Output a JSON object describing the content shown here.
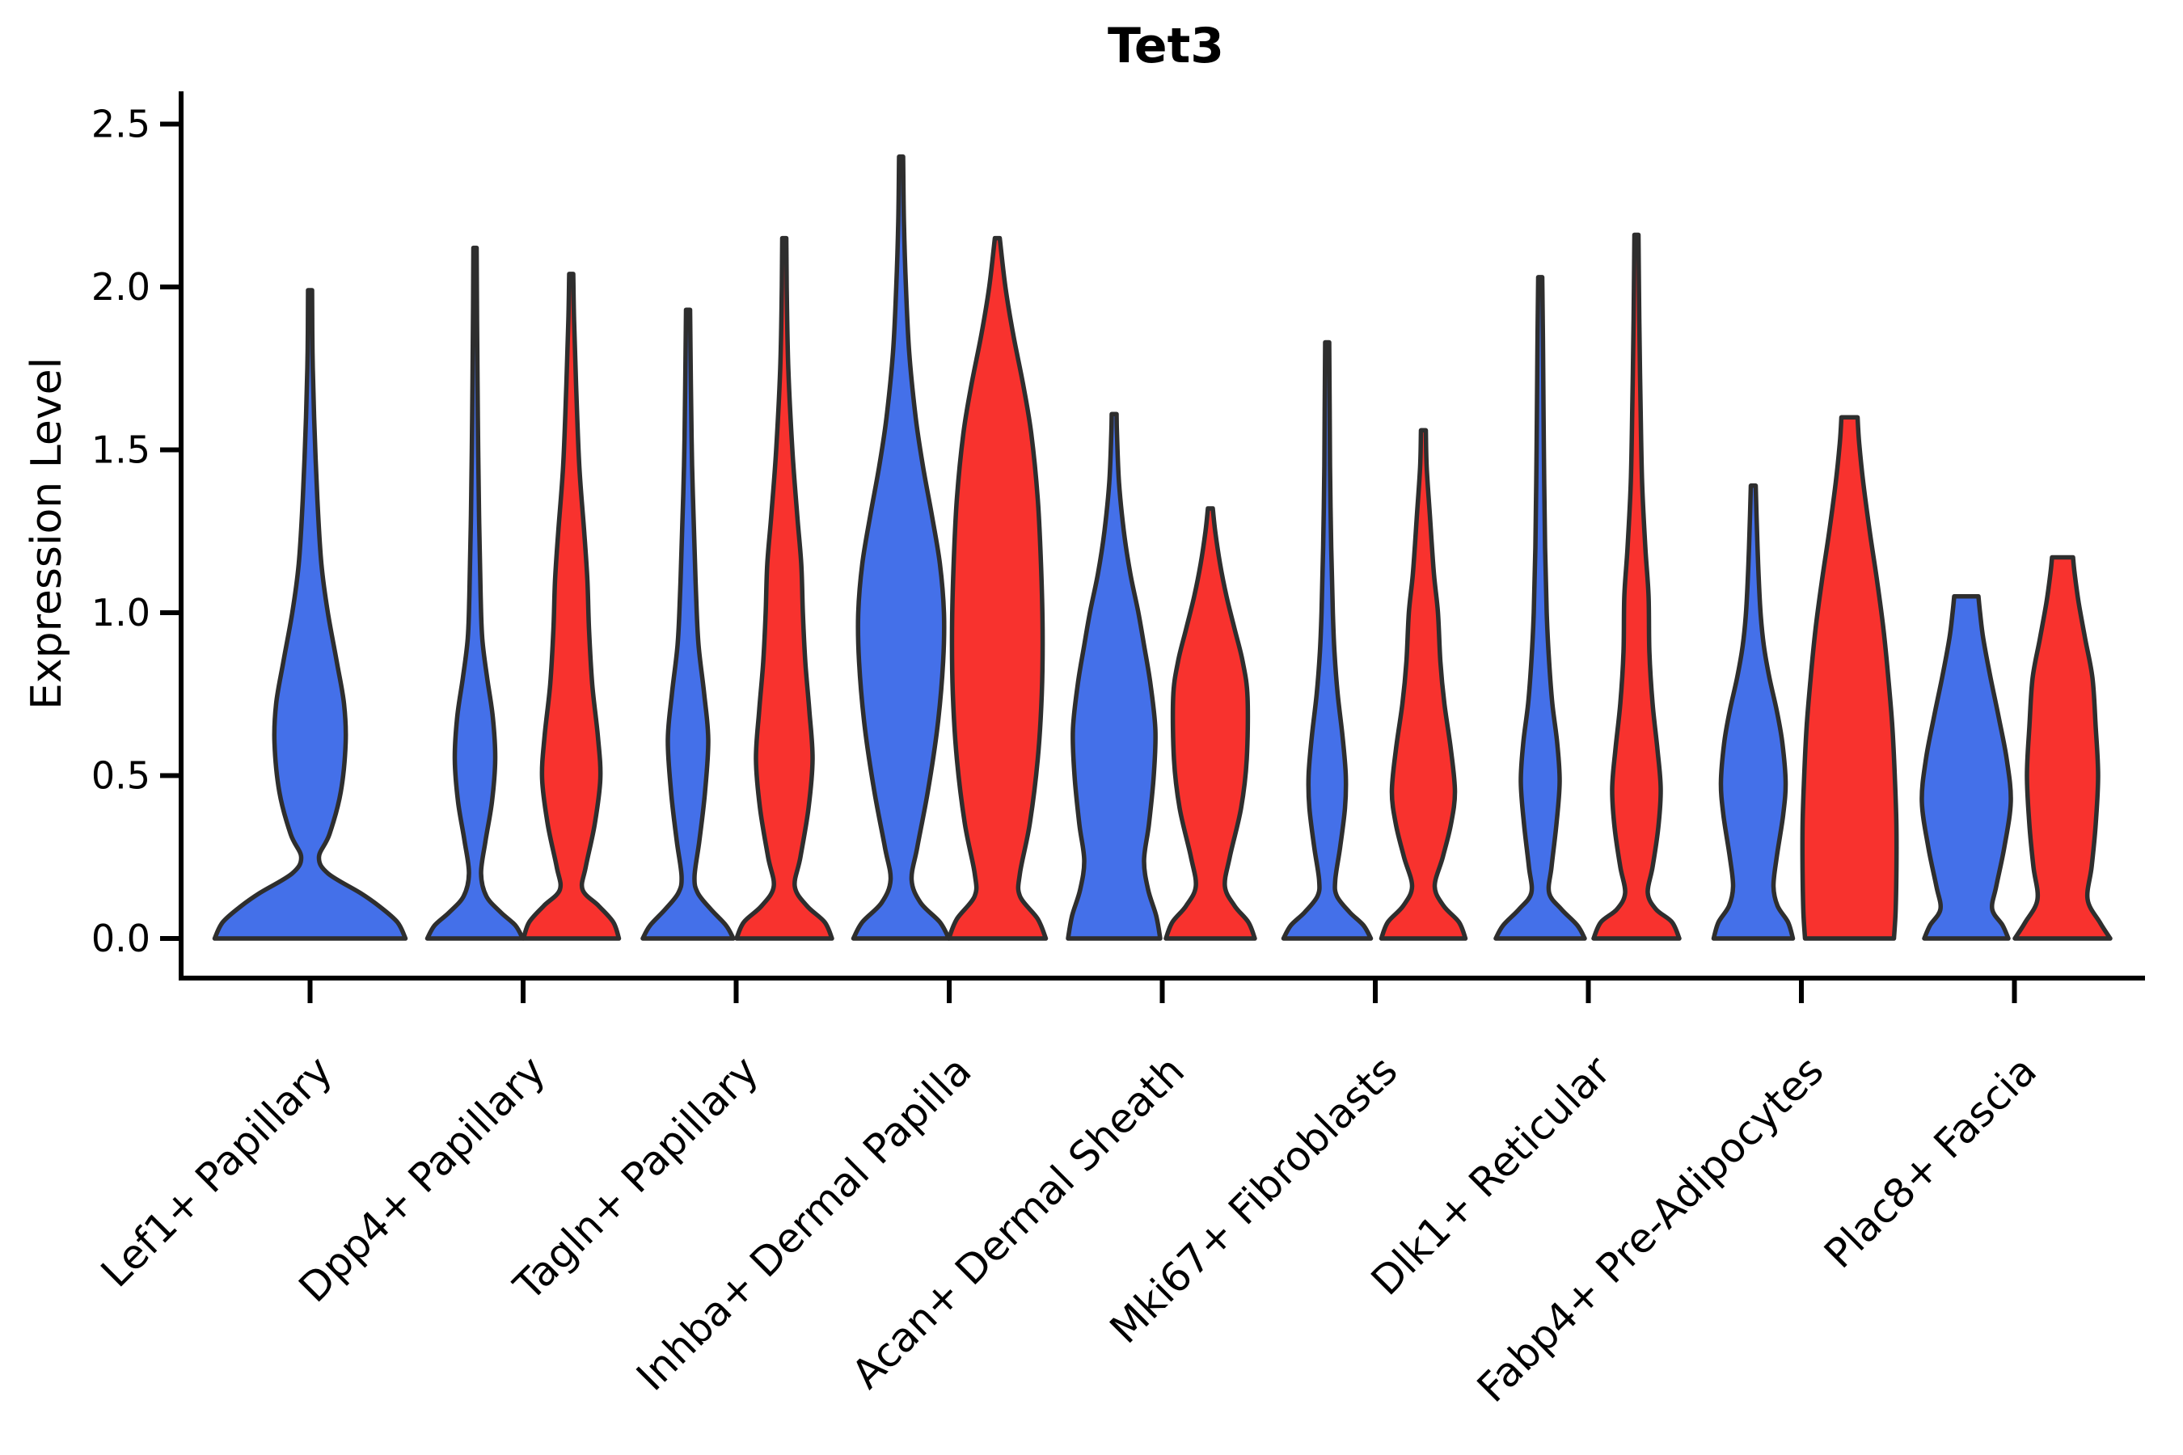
{
  "figure": {
    "title": "Tet3",
    "y_axis": {
      "label": "Expression Level",
      "tick_labels": [
        "0.0",
        "0.5",
        "1.0",
        "1.5",
        "2.0",
        "2.5"
      ],
      "tick_values": [
        0,
        0.5,
        1.0,
        1.5,
        2.0,
        2.5
      ]
    },
    "x_axis": {
      "categories": [
        "Lef1+ Papillary",
        "Dpp4+ Papillary",
        "Tagln+ Papillary",
        "Inhba+ Dermal Papilla",
        "Acan+ Dermal Sheath",
        "Mki67+ Fibroblasts",
        "Dlk1+ Reticular",
        "Fabp4+ Pre-Adipocytes",
        "Plac8+ Fascia"
      ]
    }
  },
  "style": {
    "background": "#FFFFFF",
    "axis_color": "#000000",
    "violin_outline": "#2E2E2E",
    "blue_fill": "#4470E9",
    "red_fill": "#F8322E"
  },
  "chart_data": {
    "type": "violin",
    "title": "Tet3",
    "ylabel": "Expression Level",
    "ylim": [
      0,
      2.5
    ],
    "grid": false,
    "legend_position": "none",
    "categories": [
      "Lef1+ Papillary",
      "Dpp4+ Papillary",
      "Tagln+ Papillary",
      "Inhba+ Dermal Papilla",
      "Acan+ Dermal Sheath",
      "Mki67+ Fibroblasts",
      "Dlk1+ Reticular",
      "Fabp4+ Pre-Adipocytes",
      "Plac8+ Fascia"
    ],
    "groups": {
      "blue": "#4470E9",
      "red": "#F8322E"
    },
    "profile_format": "[expression_level, half_width_px]",
    "violins": [
      {
        "category": "Lef1+ Papillary",
        "cat_index": 0,
        "side": "center",
        "group": "blue",
        "max_expression": 1.99,
        "profile": [
          [
            0,
            118
          ],
          [
            0.05,
            108
          ],
          [
            0.1,
            85
          ],
          [
            0.14,
            62
          ],
          [
            0.2,
            22
          ],
          [
            0.25,
            11
          ],
          [
            0.32,
            24
          ],
          [
            0.45,
            38
          ],
          [
            0.6,
            44
          ],
          [
            0.72,
            42
          ],
          [
            0.85,
            33
          ],
          [
            1.0,
            22
          ],
          [
            1.15,
            14
          ],
          [
            1.35,
            9
          ],
          [
            1.6,
            5
          ],
          [
            1.8,
            3
          ],
          [
            1.99,
            2.5
          ]
        ]
      },
      {
        "category": "Dpp4+ Papillary",
        "cat_index": 1,
        "side": "left",
        "group": "blue",
        "max_expression": 2.12,
        "profile": [
          [
            0,
            59
          ],
          [
            0.04,
            50
          ],
          [
            0.08,
            32
          ],
          [
            0.13,
            14
          ],
          [
            0.2,
            7.5
          ],
          [
            0.3,
            13
          ],
          [
            0.42,
            21
          ],
          [
            0.55,
            25
          ],
          [
            0.68,
            22
          ],
          [
            0.8,
            15
          ],
          [
            0.92,
            9
          ],
          [
            1.05,
            7
          ],
          [
            1.3,
            5
          ],
          [
            1.6,
            3.5
          ],
          [
            1.9,
            2.5
          ],
          [
            2.12,
            2
          ]
        ]
      },
      {
        "category": "Dpp4+ Papillary",
        "cat_index": 1,
        "side": "right",
        "group": "red",
        "max_expression": 2.04,
        "profile": [
          [
            0,
            59
          ],
          [
            0.05,
            52
          ],
          [
            0.1,
            34
          ],
          [
            0.15,
            14
          ],
          [
            0.22,
            18
          ],
          [
            0.35,
            29
          ],
          [
            0.49,
            36
          ],
          [
            0.62,
            33
          ],
          [
            0.78,
            26
          ],
          [
            0.95,
            22
          ],
          [
            1.1,
            20
          ],
          [
            1.25,
            16
          ],
          [
            1.45,
            10
          ],
          [
            1.7,
            6
          ],
          [
            1.9,
            3.5
          ],
          [
            2.04,
            2.5
          ]
        ]
      },
      {
        "category": "Tagln+ Papillary",
        "cat_index": 2,
        "side": "left",
        "group": "blue",
        "max_expression": 1.93,
        "profile": [
          [
            0,
            56
          ],
          [
            0.04,
            47
          ],
          [
            0.09,
            28
          ],
          [
            0.14,
            12
          ],
          [
            0.19,
            8
          ],
          [
            0.3,
            14
          ],
          [
            0.45,
            21
          ],
          [
            0.61,
            25
          ],
          [
            0.75,
            20
          ],
          [
            0.9,
            13
          ],
          [
            1.05,
            10
          ],
          [
            1.2,
            8
          ],
          [
            1.45,
            5
          ],
          [
            1.7,
            3.5
          ],
          [
            1.93,
            2.5
          ]
        ]
      },
      {
        "category": "Tagln+ Papillary",
        "cat_index": 2,
        "side": "right",
        "group": "red",
        "max_expression": 2.15,
        "profile": [
          [
            0,
            59
          ],
          [
            0.05,
            50
          ],
          [
            0.1,
            28
          ],
          [
            0.16,
            13
          ],
          [
            0.25,
            20
          ],
          [
            0.4,
            30
          ],
          [
            0.55,
            35
          ],
          [
            0.7,
            31
          ],
          [
            0.85,
            26
          ],
          [
            1.0,
            23
          ],
          [
            1.15,
            21
          ],
          [
            1.3,
            16
          ],
          [
            1.5,
            10
          ],
          [
            1.75,
            5
          ],
          [
            2.0,
            3
          ],
          [
            2.15,
            2.5
          ]
        ]
      },
      {
        "category": "Inhba+ Dermal Papilla",
        "cat_index": 3,
        "side": "left",
        "group": "blue",
        "max_expression": 2.4,
        "profile": [
          [
            0,
            59
          ],
          [
            0.05,
            48
          ],
          [
            0.11,
            24
          ],
          [
            0.18,
            13
          ],
          [
            0.28,
            20
          ],
          [
            0.45,
            33
          ],
          [
            0.65,
            45
          ],
          [
            0.85,
            52
          ],
          [
            1.0,
            53
          ],
          [
            1.15,
            48
          ],
          [
            1.3,
            38
          ],
          [
            1.45,
            27
          ],
          [
            1.6,
            18
          ],
          [
            1.8,
            10
          ],
          [
            2.0,
            6
          ],
          [
            2.2,
            3.5
          ],
          [
            2.4,
            2.5
          ]
        ]
      },
      {
        "category": "Inhba+ Dermal Papilla",
        "cat_index": 3,
        "side": "right",
        "group": "red",
        "max_expression": 2.15,
        "profile": [
          [
            0,
            60
          ],
          [
            0.06,
            50
          ],
          [
            0.13,
            28
          ],
          [
            0.2,
            28
          ],
          [
            0.35,
            40
          ],
          [
            0.55,
            50
          ],
          [
            0.75,
            55
          ],
          [
            0.95,
            56
          ],
          [
            1.15,
            54
          ],
          [
            1.35,
            50
          ],
          [
            1.55,
            42
          ],
          [
            1.7,
            32
          ],
          [
            1.85,
            20
          ],
          [
            2.0,
            10
          ],
          [
            2.15,
            3
          ]
        ]
      },
      {
        "category": "Acan+ Dermal Sheath",
        "cat_index": 4,
        "side": "left",
        "group": "blue",
        "max_expression": 1.61,
        "profile": [
          [
            0,
            57
          ],
          [
            0.07,
            52
          ],
          [
            0.15,
            42
          ],
          [
            0.24,
            37
          ],
          [
            0.35,
            43
          ],
          [
            0.5,
            49
          ],
          [
            0.64,
            51
          ],
          [
            0.78,
            45
          ],
          [
            0.9,
            37
          ],
          [
            1.0,
            30
          ],
          [
            1.12,
            20
          ],
          [
            1.25,
            12
          ],
          [
            1.4,
            6
          ],
          [
            1.55,
            3.5
          ],
          [
            1.61,
            3
          ]
        ]
      },
      {
        "category": "Acan+ Dermal Sheath",
        "cat_index": 4,
        "side": "right",
        "group": "red",
        "max_expression": 1.32,
        "profile": [
          [
            0,
            55
          ],
          [
            0.05,
            47
          ],
          [
            0.1,
            30
          ],
          [
            0.16,
            18
          ],
          [
            0.25,
            24
          ],
          [
            0.4,
            38
          ],
          [
            0.55,
            45
          ],
          [
            0.74,
            46
          ],
          [
            0.85,
            40
          ],
          [
            0.95,
            30
          ],
          [
            1.05,
            20
          ],
          [
            1.15,
            12
          ],
          [
            1.25,
            6
          ],
          [
            1.32,
            3
          ]
        ]
      },
      {
        "category": "Mki67+ Fibroblasts",
        "cat_index": 5,
        "side": "left",
        "group": "blue",
        "max_expression": 1.83,
        "profile": [
          [
            0,
            54
          ],
          [
            0.04,
            45
          ],
          [
            0.08,
            28
          ],
          [
            0.13,
            12
          ],
          [
            0.18,
            10
          ],
          [
            0.28,
            16
          ],
          [
            0.4,
            22
          ],
          [
            0.5,
            23
          ],
          [
            0.62,
            19
          ],
          [
            0.75,
            13
          ],
          [
            0.88,
            9
          ],
          [
            1.0,
            7
          ],
          [
            1.2,
            5
          ],
          [
            1.45,
            3.5
          ],
          [
            1.65,
            3
          ],
          [
            1.83,
            2.5
          ]
        ]
      },
      {
        "category": "Mki67+ Fibroblasts",
        "cat_index": 5,
        "side": "right",
        "group": "red",
        "max_expression": 1.56,
        "profile": [
          [
            0,
            52
          ],
          [
            0.05,
            44
          ],
          [
            0.1,
            25
          ],
          [
            0.16,
            14
          ],
          [
            0.25,
            24
          ],
          [
            0.35,
            34
          ],
          [
            0.45,
            39
          ],
          [
            0.58,
            34
          ],
          [
            0.72,
            26
          ],
          [
            0.85,
            21
          ],
          [
            1.0,
            18
          ],
          [
            1.12,
            13
          ],
          [
            1.3,
            8
          ],
          [
            1.45,
            4
          ],
          [
            1.56,
            3
          ]
        ]
      },
      {
        "category": "Dlk1+ Reticular",
        "cat_index": 6,
        "side": "left",
        "group": "blue",
        "max_expression": 2.03,
        "profile": [
          [
            0,
            55
          ],
          [
            0.04,
            46
          ],
          [
            0.09,
            26
          ],
          [
            0.14,
            11
          ],
          [
            0.22,
            14
          ],
          [
            0.35,
            20
          ],
          [
            0.48,
            24
          ],
          [
            0.6,
            21
          ],
          [
            0.72,
            15
          ],
          [
            0.85,
            11
          ],
          [
            1.0,
            8
          ],
          [
            1.2,
            6
          ],
          [
            1.5,
            4.5
          ],
          [
            1.8,
            3.5
          ],
          [
            2.03,
            2.5
          ]
        ]
      },
      {
        "category": "Dlk1+ Reticular",
        "cat_index": 6,
        "side": "right",
        "group": "red",
        "max_expression": 2.16,
        "profile": [
          [
            0,
            53
          ],
          [
            0.05,
            44
          ],
          [
            0.09,
            24
          ],
          [
            0.14,
            14
          ],
          [
            0.22,
            20
          ],
          [
            0.34,
            27
          ],
          [
            0.46,
            30
          ],
          [
            0.58,
            26
          ],
          [
            0.72,
            20
          ],
          [
            0.88,
            16
          ],
          [
            1.05,
            15
          ],
          [
            1.2,
            11
          ],
          [
            1.4,
            7
          ],
          [
            1.65,
            5
          ],
          [
            1.9,
            3.5
          ],
          [
            2.16,
            2.5
          ]
        ]
      },
      {
        "category": "Fabp4+ Pre-Adipocytes",
        "cat_index": 7,
        "side": "left",
        "group": "blue",
        "max_expression": 1.39,
        "profile": [
          [
            0,
            49
          ],
          [
            0.05,
            43
          ],
          [
            0.1,
            30
          ],
          [
            0.16,
            25
          ],
          [
            0.25,
            29
          ],
          [
            0.38,
            37
          ],
          [
            0.48,
            40
          ],
          [
            0.6,
            36
          ],
          [
            0.7,
            29
          ],
          [
            0.8,
            20
          ],
          [
            0.9,
            13
          ],
          [
            1.0,
            9
          ],
          [
            1.15,
            6
          ],
          [
            1.3,
            4
          ],
          [
            1.39,
            3
          ]
        ]
      },
      {
        "category": "Fabp4+ Pre-Adipocytes",
        "cat_index": 7,
        "side": "right",
        "group": "red",
        "max_expression": 1.6,
        "profile": [
          [
            0,
            55
          ],
          [
            0.08,
            57
          ],
          [
            0.2,
            58
          ],
          [
            0.35,
            58
          ],
          [
            0.5,
            56
          ],
          [
            0.65,
            53
          ],
          [
            0.8,
            48
          ],
          [
            0.95,
            42
          ],
          [
            1.1,
            34
          ],
          [
            1.25,
            25
          ],
          [
            1.4,
            17
          ],
          [
            1.52,
            12
          ],
          [
            1.6,
            10
          ]
        ]
      },
      {
        "category": "Plac8+ Fascia",
        "cat_index": 8,
        "side": "left",
        "group": "blue",
        "max_expression": 1.05,
        "profile": [
          [
            0,
            52
          ],
          [
            0.04,
            45
          ],
          [
            0.09,
            32
          ],
          [
            0.16,
            37
          ],
          [
            0.28,
            47
          ],
          [
            0.42,
            55
          ],
          [
            0.55,
            50
          ],
          [
            0.68,
            40
          ],
          [
            0.8,
            30
          ],
          [
            0.92,
            21
          ],
          [
            1.0,
            17
          ],
          [
            1.05,
            15
          ]
        ]
      },
      {
        "category": "Plac8+ Fascia",
        "cat_index": 8,
        "side": "right",
        "group": "red",
        "max_expression": 1.17,
        "profile": [
          [
            0,
            59
          ],
          [
            0.05,
            46
          ],
          [
            0.12,
            31
          ],
          [
            0.22,
            36
          ],
          [
            0.35,
            41
          ],
          [
            0.5,
            44
          ],
          [
            0.65,
            41
          ],
          [
            0.8,
            37
          ],
          [
            0.92,
            28
          ],
          [
            1.03,
            20
          ],
          [
            1.12,
            15
          ],
          [
            1.17,
            13
          ]
        ]
      }
    ]
  }
}
